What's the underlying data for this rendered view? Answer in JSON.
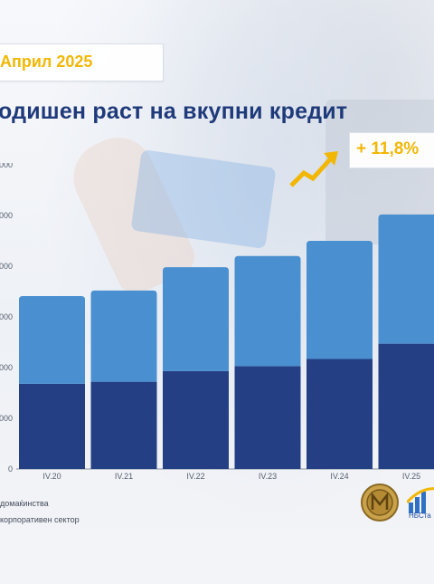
{
  "header": {
    "date": "Април 2025",
    "headline": "одишен раст на вкупни кредит",
    "growth": "+ 11,8%"
  },
  "legend": {
    "households": "домаќинства",
    "corporate": "корпоративен сектор"
  },
  "branding": {
    "seal": "central-bank-seal-icon",
    "logo_text": "НБСта"
  },
  "colors": {
    "households": "#243f84",
    "corporate": "#4a8fd0",
    "accent": "#f2b705",
    "headline": "#1f3a7a"
  },
  "chart_data": {
    "type": "bar",
    "stacked": true,
    "categories": [
      "IV.20",
      "IV.21",
      "IV.22",
      "IV.23",
      "IV.24",
      "IV.25"
    ],
    "series": [
      {
        "name": "домаќинства",
        "values": [
          168,
          172,
          193,
          203,
          217,
          247
        ]
      },
      {
        "name": "корпоративен сектор",
        "values": [
          173,
          180,
          205,
          217,
          233,
          255
        ]
      }
    ],
    "yticks": [
      "0",
      "000",
      "000",
      "000",
      "000",
      "000",
      "000"
    ],
    "ylim": [
      0,
      600
    ],
    "grid": false,
    "legend": "bottom-left",
    "annotation": "+ 11,8%"
  }
}
